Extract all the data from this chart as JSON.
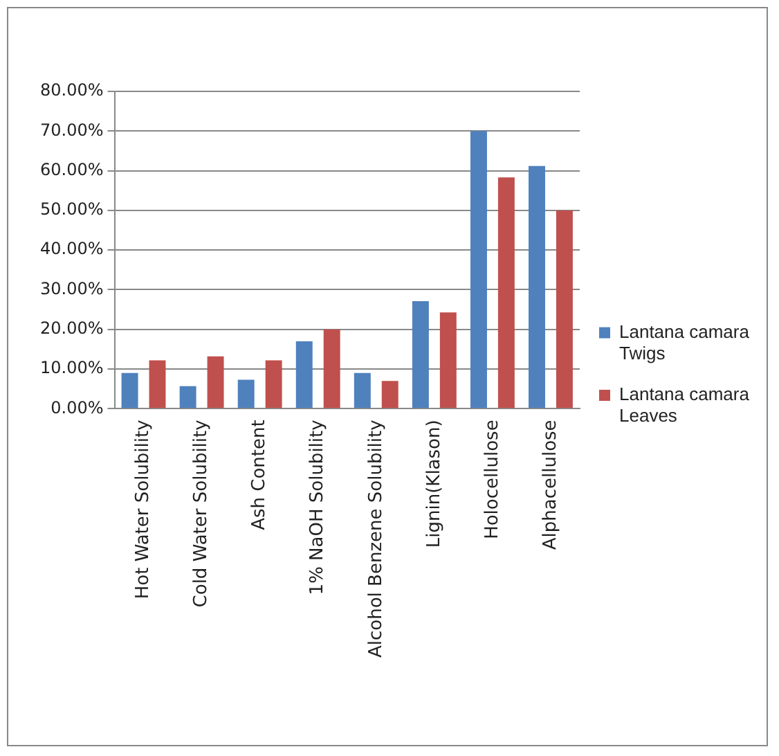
{
  "chart_data": {
    "type": "bar",
    "categories": [
      "Hot Water Solubility",
      "Cold Water Solubility",
      "Ash Content",
      "1% NaOH Solubility",
      "Alcohol Benzene Solubility",
      "Lignin(Klason)",
      "Holocellulose",
      "Alphacellulose"
    ],
    "series": [
      {
        "name": "Lantana camara Twigs",
        "color": "#4f81bd",
        "values": [
          9,
          5.7,
          7.3,
          17,
          9,
          27.1,
          70,
          61.2
        ]
      },
      {
        "name": "Lantana camara Leaves",
        "color": "#c0504d",
        "values": [
          12.2,
          13.2,
          12.2,
          20,
          7,
          24.3,
          58.3,
          50
        ]
      }
    ],
    "ylim": [
      0,
      80
    ],
    "yticks": [
      {
        "value": 0,
        "label": "0.00%"
      },
      {
        "value": 10,
        "label": "10.00%"
      },
      {
        "value": 20,
        "label": "20.00%"
      },
      {
        "value": 30,
        "label": "30.00%"
      },
      {
        "value": 40,
        "label": "40.00%"
      },
      {
        "value": 50,
        "label": "50.00%"
      },
      {
        "value": 60,
        "label": "60.00%"
      },
      {
        "value": 70,
        "label": "70.00%"
      },
      {
        "value": 80,
        "label": "80.00%"
      }
    ],
    "grid": "y",
    "legend": "right"
  }
}
